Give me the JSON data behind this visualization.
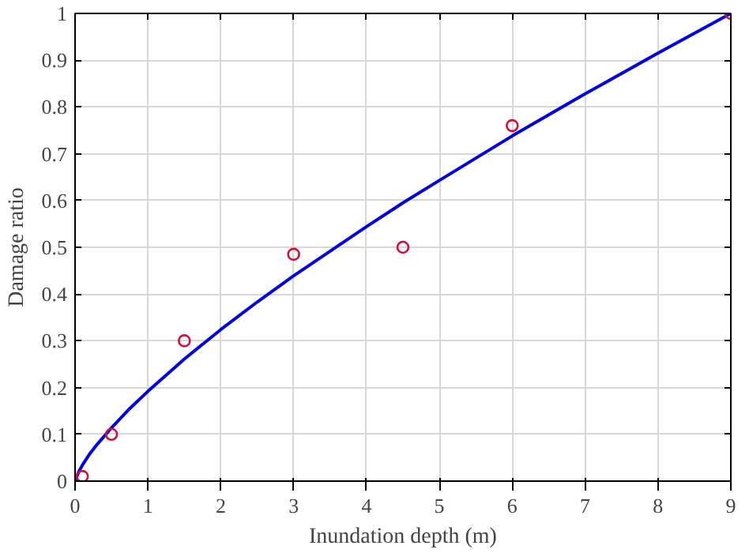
{
  "chart_data": {
    "type": "scatter",
    "xlabel": "Inundation depth (m)",
    "ylabel": "Damage ratio",
    "xlim": [
      0,
      9
    ],
    "ylim": [
      0,
      1
    ],
    "xticks": [
      0,
      1,
      2,
      3,
      4,
      5,
      6,
      7,
      8,
      9
    ],
    "yticks": [
      0,
      0.1,
      0.2,
      0.3,
      0.4,
      0.5,
      0.6,
      0.7,
      0.8,
      0.9,
      1
    ],
    "grid": true,
    "series": [
      {
        "type": "line",
        "color": "#0000e0",
        "marker": "none",
        "line_style": "solid",
        "x": [
          0,
          0.05,
          0.1,
          0.2,
          0.3,
          0.5,
          0.75,
          1,
          1.5,
          2,
          2.5,
          3,
          4,
          4.5,
          5,
          6,
          7,
          8,
          9
        ],
        "values": [
          0,
          0.02,
          0.034,
          0.058,
          0.078,
          0.114,
          0.155,
          0.192,
          0.261,
          0.324,
          0.383,
          0.439,
          0.544,
          0.595,
          0.643,
          0.738,
          0.828,
          0.915,
          1.0
        ]
      },
      {
        "color": "#d0103a",
        "marker": "circle",
        "x": [
          0.1,
          0.5,
          1.5,
          3,
          4.5,
          6,
          9
        ],
        "values": [
          0.01,
          0.1,
          0.3,
          0.485,
          0.5,
          0.76,
          1.0
        ]
      }
    ]
  }
}
